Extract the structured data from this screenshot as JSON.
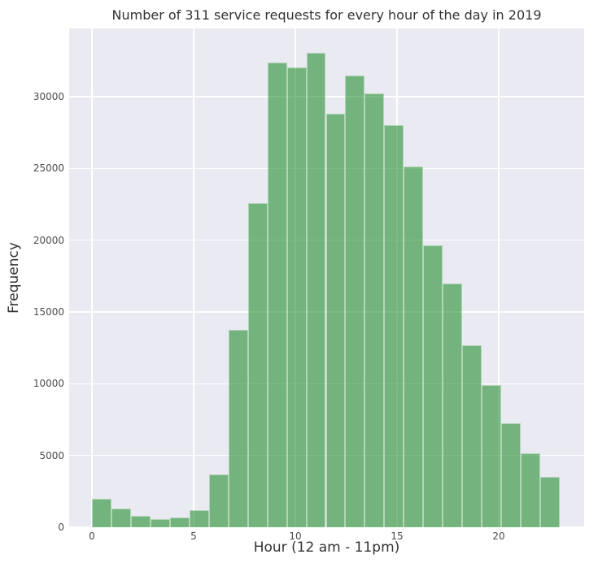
{
  "figure": {
    "title": "Number of 311 service requests for every hour of the day in 2019",
    "xlabel": "Hour (12 am - 11pm)",
    "ylabel": "Frequency"
  },
  "chart_data": {
    "type": "bar",
    "title": "Number of 311 service requests for every hour of the day in 2019",
    "xlabel": "Hour (12 am - 11pm)",
    "ylabel": "Frequency",
    "categories": [
      0,
      1,
      2,
      3,
      4,
      5,
      6,
      7,
      8,
      9,
      10,
      11,
      12,
      13,
      14,
      15,
      16,
      17,
      18,
      19,
      20,
      21,
      22,
      23
    ],
    "values": [
      2000,
      1300,
      800,
      550,
      700,
      1200,
      3700,
      13750,
      22600,
      32350,
      32050,
      33050,
      28800,
      31450,
      30250,
      28000,
      25150,
      19650,
      17000,
      12700,
      9900,
      7250,
      5150,
      3500
    ],
    "xticks": [
      0,
      5,
      10,
      15,
      20
    ],
    "yticks": [
      0,
      5000,
      10000,
      15000,
      20000,
      25000,
      30000
    ],
    "ylim": [
      0,
      34750
    ],
    "xlim": [
      -1.12,
      24.2
    ],
    "grid": true,
    "legend": null,
    "colors": {
      "plot_background": "#eaeaf2",
      "gridline": "#ffffff",
      "bar_fill": "rgba(10,130,20,0.53)",
      "bar_fill_apparent_hex": "#74b47c",
      "bar_edge": "rgba(255,255,255,0.45)",
      "title_text": "#333333",
      "tick_text": "#4c4c4c"
    }
  }
}
